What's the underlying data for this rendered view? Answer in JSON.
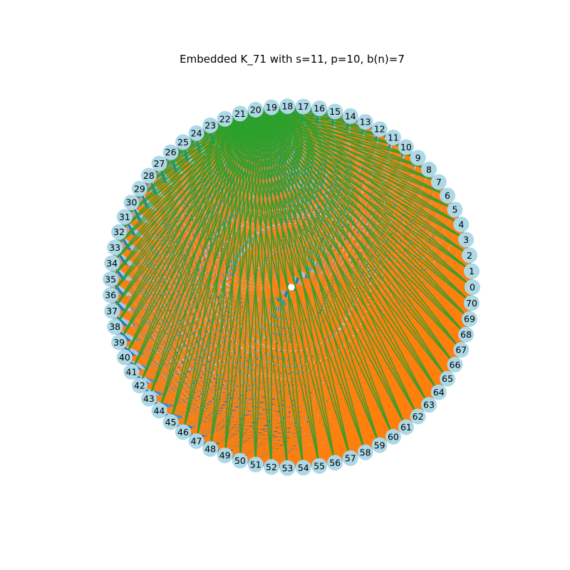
{
  "title": "Embedded K_71 with s=11, p=10, b(n)=7",
  "graph": {
    "type": "complete-graph-circular-embedding",
    "n": 71,
    "s": 11,
    "p": 10,
    "b_n": 7,
    "node_color": "#add8e6",
    "center_marker_color": "#ffffff",
    "labels": [
      "0",
      "1",
      "2",
      "3",
      "4",
      "5",
      "6",
      "7",
      "8",
      "9",
      "10",
      "11",
      "12",
      "13",
      "14",
      "15",
      "16",
      "17",
      "18",
      "19",
      "20",
      "21",
      "22",
      "23",
      "24",
      "25",
      "26",
      "27",
      "28",
      "29",
      "30",
      "31",
      "32",
      "33",
      "34",
      "35",
      "36",
      "37",
      "38",
      "39",
      "40",
      "41",
      "42",
      "43",
      "44",
      "45",
      "46",
      "47",
      "48",
      "49",
      "50",
      "51",
      "52",
      "53",
      "54",
      "55",
      "56",
      "57",
      "58",
      "59",
      "60",
      "61",
      "62",
      "63",
      "64",
      "65",
      "66",
      "67",
      "68",
      "69",
      "70"
    ],
    "pages": [
      {
        "color": "#8c564b",
        "hubs": [
          0,
          1,
          2,
          3,
          4,
          5
        ]
      },
      {
        "color": "#ff9896",
        "hubs": [
          12,
          13,
          14,
          15,
          16,
          17,
          18
        ]
      },
      {
        "color": "#9467bd",
        "hubs": [
          22,
          23,
          24,
          25,
          26,
          27
        ]
      },
      {
        "color": "#c5b0d5",
        "hubs": [
          20,
          21,
          26,
          27
        ]
      },
      {
        "color": "#f7b6d2",
        "hubs": [
          28,
          29,
          30,
          31,
          32,
          33,
          34
        ]
      },
      {
        "color": "#e377c2",
        "hubs": [
          33,
          34,
          35,
          47,
          48,
          49
        ]
      },
      {
        "color": "#7f7f7f",
        "hubs": [
          35,
          36,
          37,
          38,
          39,
          40,
          41
        ]
      },
      {
        "color": "#c49c94",
        "hubs": [
          42,
          43,
          44,
          45,
          46,
          47,
          48
        ]
      },
      {
        "color": "#aec7e8",
        "hubs": [
          50,
          51,
          52,
          53,
          54,
          55,
          56,
          57
        ]
      },
      {
        "color": "#1f77b4",
        "hubs": [
          50,
          51,
          52
        ]
      },
      {
        "color": "#ff7f0e",
        "hubs": [
          58,
          59,
          60,
          61,
          62,
          63,
          64,
          65,
          66,
          67,
          68,
          69
        ]
      },
      {
        "color": "#2ca02c",
        "hubs": [
          19,
          20,
          21
        ]
      }
    ]
  }
}
